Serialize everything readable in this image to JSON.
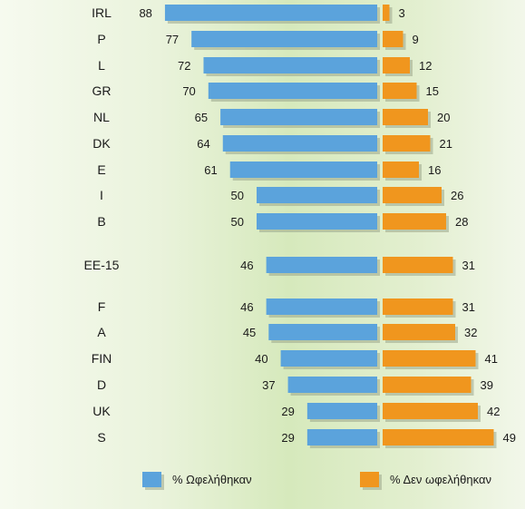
{
  "chart_data": {
    "type": "bar",
    "categories": [
      "IRL",
      "P",
      "L",
      "GR",
      "NL",
      "DK",
      "E",
      "I",
      "B",
      "EE-15",
      "F",
      "A",
      "FIN",
      "D",
      "UK",
      "S"
    ],
    "series": [
      {
        "name": "% Ωφελήθηκαν",
        "color": "#5ba3dc",
        "values": [
          88,
          77,
          72,
          70,
          65,
          64,
          61,
          50,
          50,
          46,
          46,
          45,
          40,
          37,
          29,
          29
        ]
      },
      {
        "name": "% Δεν ωφελήθηκαν",
        "color": "#f0961e",
        "values": [
          3,
          9,
          12,
          15,
          20,
          21,
          16,
          26,
          28,
          31,
          31,
          32,
          41,
          39,
          42,
          49
        ]
      }
    ],
    "orientation": "horizontal-diverging",
    "legend_position": "bottom",
    "grid": false
  }
}
